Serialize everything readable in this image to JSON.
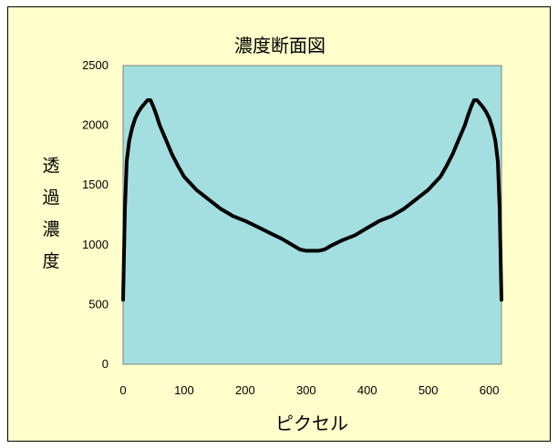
{
  "chart_data": {
    "type": "line",
    "title": "濃度断面図",
    "xlabel": "ピクセル",
    "ylabel_chars": [
      "透",
      "過",
      "濃",
      "度"
    ],
    "xlim": [
      0,
      620
    ],
    "ylim": [
      0,
      2500
    ],
    "xticks": [
      0,
      100,
      200,
      300,
      400,
      500,
      600
    ],
    "yticks": [
      0,
      500,
      1000,
      1500,
      2000,
      2500
    ],
    "plot_background": "#a3dfe0",
    "chart_background": "#ffffcc",
    "line_color": "#000000",
    "grid": false,
    "legend": "none",
    "series": [
      {
        "x": [
          0,
          3,
          6,
          10,
          15,
          20,
          25,
          30,
          35,
          40,
          45,
          50,
          55,
          60,
          70,
          80,
          90,
          100,
          120,
          140,
          160,
          180,
          200,
          220,
          240,
          260,
          280,
          290,
          300,
          310,
          320,
          330,
          340,
          360,
          380,
          400,
          420,
          440,
          460,
          480,
          500,
          520,
          530,
          540,
          550,
          560,
          565,
          570,
          575,
          580,
          585,
          590,
          595,
          600,
          605,
          610,
          614,
          617,
          620
        ],
        "y": [
          540,
          1300,
          1700,
          1870,
          1980,
          2060,
          2110,
          2150,
          2180,
          2210,
          2210,
          2150,
          2080,
          2000,
          1880,
          1760,
          1660,
          1570,
          1460,
          1380,
          1300,
          1240,
          1200,
          1150,
          1100,
          1050,
          990,
          960,
          950,
          950,
          950,
          960,
          990,
          1040,
          1080,
          1140,
          1200,
          1240,
          1300,
          1380,
          1460,
          1570,
          1660,
          1760,
          1880,
          2000,
          2080,
          2150,
          2210,
          2210,
          2180,
          2150,
          2110,
          2060,
          1980,
          1870,
          1700,
          1300,
          540
        ]
      }
    ]
  }
}
